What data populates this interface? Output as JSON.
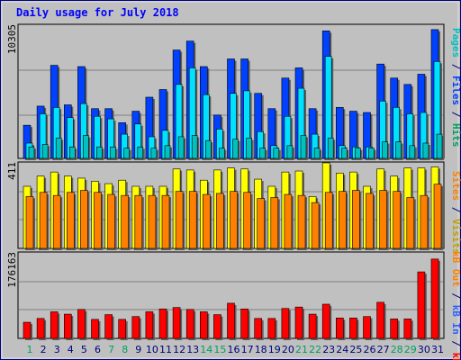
{
  "chart_data": [
    {
      "type": "bar",
      "title": "Daily usage for July 2018",
      "panel": "hits",
      "y_tick": "10305",
      "ymax": 10305,
      "labels": {
        "pages": "Pages",
        "files": "Files",
        "hits": "Hits",
        "sep": " / "
      },
      "categories": [
        "1",
        "2",
        "3",
        "4",
        "5",
        "6",
        "7",
        "8",
        "9",
        "10",
        "11",
        "12",
        "13",
        "14",
        "15",
        "16",
        "17",
        "18",
        "19",
        "20",
        "21",
        "22",
        "23",
        "24",
        "25",
        "26",
        "27",
        "28",
        "29",
        "30",
        "31"
      ],
      "weekend_days": [
        "1",
        "7",
        "8",
        "14",
        "15",
        "21",
        "22",
        "28",
        "29"
      ],
      "series": [
        {
          "name": "Hits",
          "color": "#0040ff",
          "values": [
            2600,
            4100,
            7300,
            4200,
            7200,
            3900,
            3900,
            2800,
            3700,
            4800,
            5400,
            8500,
            9200,
            7200,
            3400,
            7800,
            7800,
            5100,
            3900,
            6300,
            7100,
            3900,
            10000,
            4000,
            3700,
            3600,
            7400,
            6300,
            5800,
            6600,
            10100
          ]
        },
        {
          "name": "Files",
          "color": "#00e0ff",
          "values": [
            1200,
            3500,
            4000,
            3200,
            4300,
            3300,
            3100,
            1900,
            2700,
            1700,
            2200,
            5800,
            7100,
            5000,
            2300,
            5100,
            5300,
            2100,
            1000,
            3300,
            5500,
            1900,
            8000,
            1000,
            900,
            900,
            4500,
            4000,
            3500,
            3600,
            7600
          ]
        },
        {
          "name": "Pages",
          "color": "#00c0c0",
          "values": [
            900,
            1100,
            1600,
            900,
            1800,
            900,
            900,
            800,
            900,
            800,
            1000,
            1700,
            1800,
            1400,
            800,
            1500,
            1600,
            800,
            800,
            1000,
            1800,
            800,
            1600,
            800,
            800,
            800,
            1300,
            1300,
            1000,
            1200,
            1900
          ]
        }
      ]
    },
    {
      "type": "bar",
      "panel": "sites",
      "y_tick": "411",
      "ymax": 411,
      "labels": {
        "visits": "Visits",
        "sites": "Sites",
        "sep": " / "
      },
      "categories": [
        "1",
        "2",
        "3",
        "4",
        "5",
        "6",
        "7",
        "8",
        "9",
        "10",
        "11",
        "12",
        "13",
        "14",
        "15",
        "16",
        "17",
        "18",
        "19",
        "20",
        "21",
        "22",
        "23",
        "24",
        "25",
        "26",
        "27",
        "28",
        "29",
        "30",
        "31"
      ],
      "series": [
        {
          "name": "Visits",
          "color": "#ffff00",
          "values": [
            305,
            355,
            375,
            355,
            345,
            330,
            318,
            335,
            305,
            305,
            305,
            390,
            385,
            335,
            385,
            395,
            390,
            340,
            305,
            375,
            380,
            255,
            420,
            370,
            375,
            305,
            390,
            355,
            395,
            395,
            400
          ]
        },
        {
          "name": "Sites",
          "color": "#ff8000",
          "values": [
            255,
            275,
            260,
            275,
            285,
            275,
            265,
            260,
            260,
            260,
            260,
            280,
            280,
            265,
            270,
            280,
            275,
            245,
            250,
            265,
            260,
            225,
            275,
            280,
            285,
            270,
            285,
            280,
            250,
            260,
            315
          ]
        }
      ]
    },
    {
      "type": "bar",
      "panel": "kbytes",
      "y_tick": "176163",
      "ymax": 176163,
      "labels": {
        "kbf": "kB F",
        "kbin": "kB In",
        "kbout": "kB Out",
        "sep": " / "
      },
      "categories": [
        "1",
        "2",
        "3",
        "4",
        "5",
        "6",
        "7",
        "8",
        "9",
        "10",
        "11",
        "12",
        "13",
        "14",
        "15",
        "16",
        "17",
        "18",
        "19",
        "20",
        "21",
        "22",
        "23",
        "24",
        "25",
        "26",
        "27",
        "28",
        "29",
        "30",
        "31"
      ],
      "series": [
        {
          "name": "kB F",
          "color": "#ff0000",
          "values": [
            34000,
            42000,
            56000,
            51000,
            61000,
            40000,
            50000,
            40000,
            46000,
            56000,
            62000,
            65000,
            61000,
            56000,
            50000,
            74000,
            62000,
            42000,
            42000,
            63000,
            66000,
            51000,
            72000,
            43000,
            43000,
            46000,
            76000,
            41000,
            41000,
            140000,
            167000
          ]
        }
      ]
    }
  ],
  "colors": {
    "border": "#000080",
    "background": "#ffffff",
    "frame": "#c0c0c0",
    "title": "#0000ff",
    "gridline": "#808080",
    "weekday_label": "#000080",
    "weekend_label": "#00a060",
    "kbin": "#3060ff",
    "kbout": "#00a000"
  }
}
